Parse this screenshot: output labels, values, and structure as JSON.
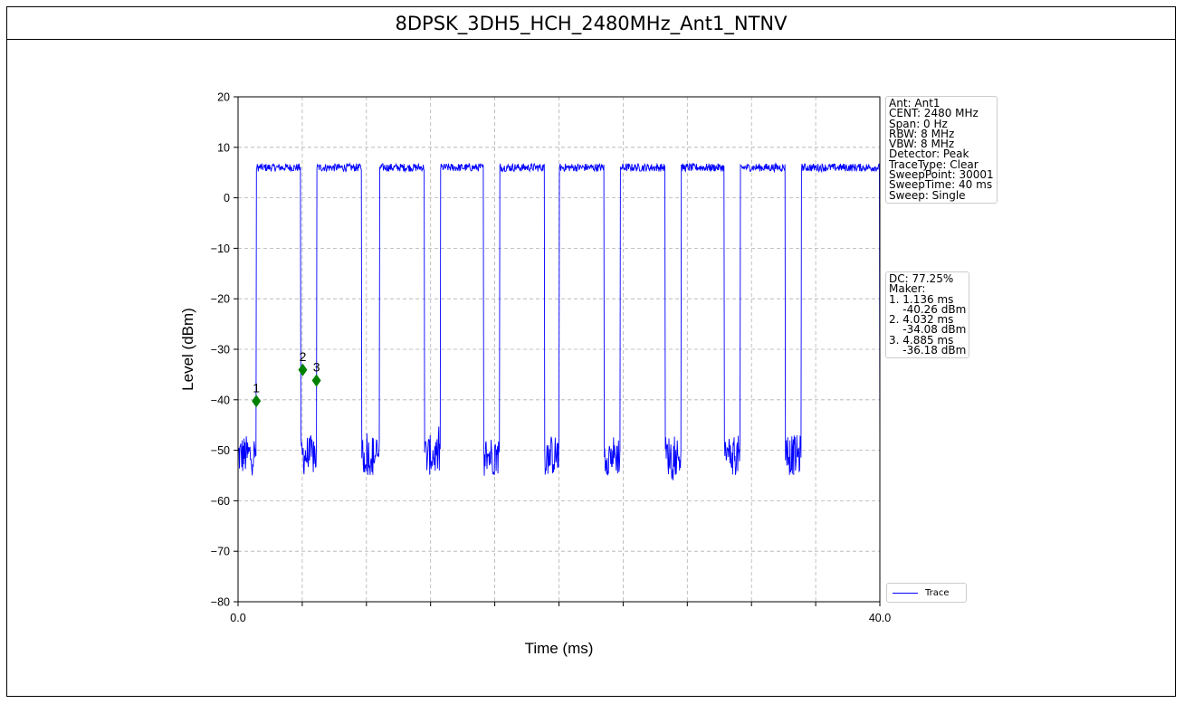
{
  "title": "8DPSK_3DH5_HCH_2480MHz_Ant1_NTNV",
  "chart_data": {
    "type": "line",
    "xlabel": "Time (ms)",
    "ylabel": "Level (dBm)",
    "xlim": [
      0,
      40
    ],
    "ylim": [
      -80,
      20
    ],
    "x_tick_labels": [
      "0.0",
      "40.0"
    ],
    "y_ticks": [
      20,
      10,
      0,
      -10,
      -20,
      -30,
      -40,
      -50,
      -60,
      -70,
      -80
    ],
    "grid": true,
    "legend_position": "lower-right",
    "series": [
      {
        "name": "Trace",
        "color": "#0000ff",
        "bursts_on_ms": [
          [
            1.14,
            3.9
          ],
          [
            4.9,
            7.7
          ],
          [
            8.8,
            11.6
          ],
          [
            12.6,
            15.3
          ],
          [
            16.3,
            19.1
          ],
          [
            20.0,
            22.8
          ],
          [
            23.8,
            26.6
          ],
          [
            27.6,
            30.3
          ],
          [
            31.3,
            34.1
          ],
          [
            35.1,
            40.0
          ]
        ],
        "on_level_dbm": 6,
        "off_level_dbm": -51,
        "off_level_min_dbm": -56.5
      }
    ],
    "markers": [
      {
        "label": "1",
        "x": 1.136,
        "y": -40.26
      },
      {
        "label": "2",
        "x": 4.032,
        "y": -34.08
      },
      {
        "label": "3",
        "x": 4.885,
        "y": -36.18
      }
    ],
    "marker_color": "#008000"
  },
  "settings_box": [
    "Ant: Ant1",
    "CENT: 2480 MHz",
    "Span: 0 Hz",
    "RBW: 8 MHz",
    "VBW: 8 MHz",
    "Detector: Peak",
    "TraceType: Clear",
    "SweepPoint: 30001",
    "SweepTime: 40 ms",
    "Sweep: Single"
  ],
  "marker_box": [
    "DC: 77.25%",
    "Maker:",
    "1. 1.136 ms",
    "    -40.26 dBm",
    "2. 4.032 ms",
    "    -34.08 dBm",
    "3. 4.885 ms",
    "    -36.18 dBm"
  ]
}
